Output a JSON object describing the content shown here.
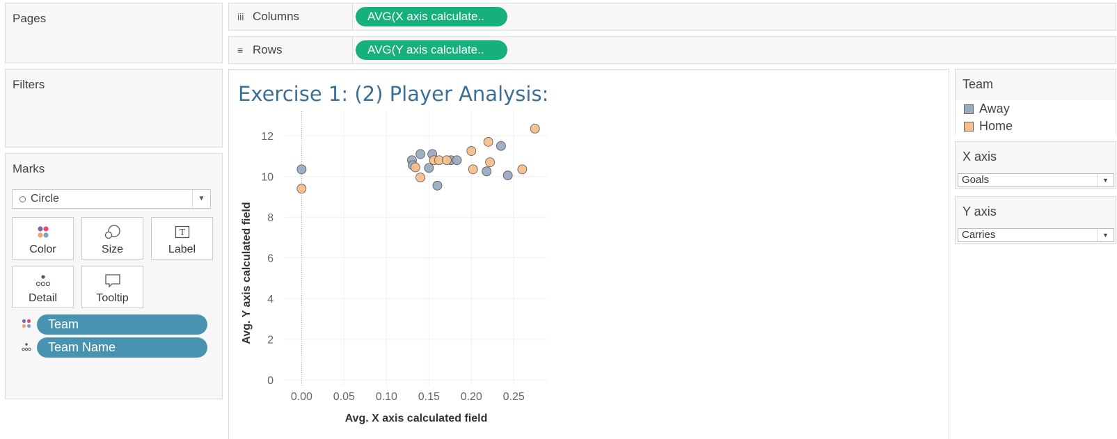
{
  "panels": {
    "pages": "Pages",
    "filters": "Filters",
    "marks": "Marks"
  },
  "shelves": {
    "columns": {
      "label": "Columns",
      "icon": "iii",
      "pill": "AVG(X axis calculate.."
    },
    "rows": {
      "label": "Rows",
      "icon": "≡",
      "pill": "AVG(Y axis calculate.."
    }
  },
  "marks": {
    "type": "Circle",
    "buttons": {
      "color": "Color",
      "size": "Size",
      "label": "Label",
      "detail": "Detail",
      "tooltip": "Tooltip"
    },
    "fields": [
      {
        "name": "Team",
        "icon": "color-icon"
      },
      {
        "name": "Team Name",
        "icon": "detail-icon"
      }
    ]
  },
  "view": {
    "title": "Exercise 1: (2) Player Analysis:"
  },
  "legend": {
    "title": "Team",
    "items": [
      {
        "name": "Away",
        "color": "#9aabc3"
      },
      {
        "name": "Home",
        "color": "#f6bf8b"
      }
    ]
  },
  "params": {
    "x_axis": {
      "title": "X axis",
      "value": "Goals"
    },
    "y_axis": {
      "title": "Y axis",
      "value": "Carries"
    }
  },
  "chart_data": {
    "type": "scatter",
    "title": "",
    "xlabel": "Avg. X axis calculated field",
    "ylabel": "Avg. Y axis calculated field",
    "xlim": [
      -0.02,
      0.29
    ],
    "ylim": [
      -0.3,
      13.2
    ],
    "xticks": [
      "0.00",
      "0.05",
      "0.10",
      "0.15",
      "0.20",
      "0.25"
    ],
    "yticks": [
      "0",
      "2",
      "4",
      "6",
      "8",
      "10",
      "12"
    ],
    "grid": true,
    "series": [
      {
        "name": "Away",
        "color": "#9aabc3",
        "points": [
          [
            0.0,
            10.35
          ],
          [
            0.13,
            10.8
          ],
          [
            0.131,
            10.55
          ],
          [
            0.14,
            11.1
          ],
          [
            0.15,
            10.42
          ],
          [
            0.154,
            11.1
          ],
          [
            0.16,
            9.55
          ],
          [
            0.176,
            10.8
          ],
          [
            0.183,
            10.8
          ],
          [
            0.218,
            10.25
          ],
          [
            0.235,
            11.5
          ],
          [
            0.243,
            10.05
          ]
        ]
      },
      {
        "name": "Home",
        "color": "#f6bf8b",
        "points": [
          [
            0.0,
            9.4
          ],
          [
            0.134,
            10.45
          ],
          [
            0.14,
            9.95
          ],
          [
            0.156,
            10.8
          ],
          [
            0.162,
            10.8
          ],
          [
            0.171,
            10.8
          ],
          [
            0.2,
            11.25
          ],
          [
            0.202,
            10.35
          ],
          [
            0.22,
            11.7
          ],
          [
            0.222,
            10.7
          ],
          [
            0.26,
            10.35
          ],
          [
            0.275,
            12.35
          ]
        ]
      }
    ]
  }
}
